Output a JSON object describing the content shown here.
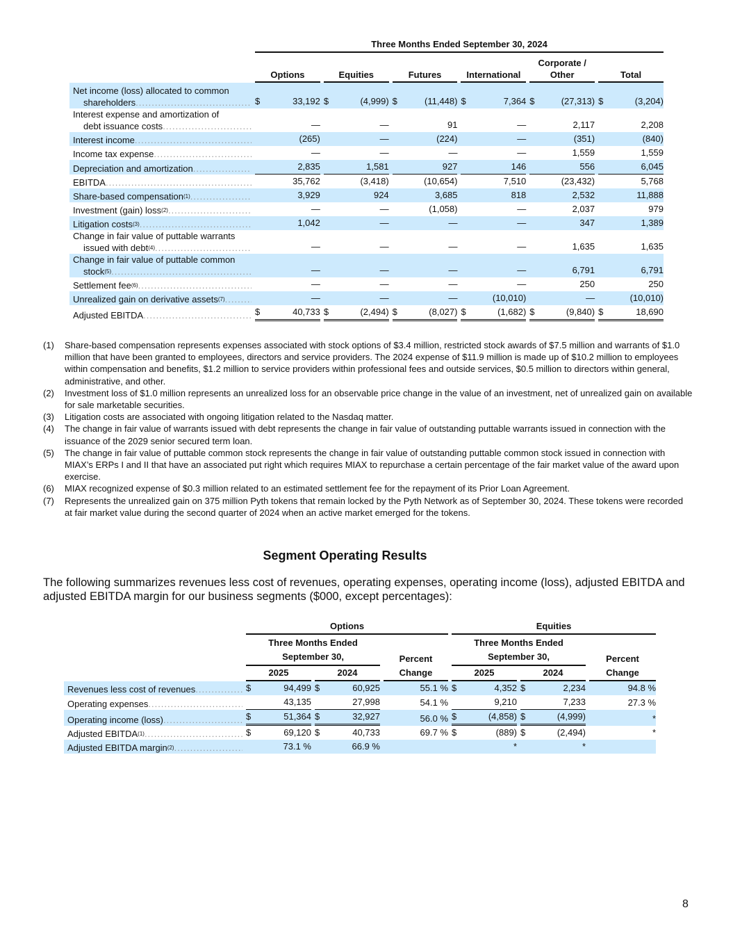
{
  "table1": {
    "period_header": "Three Months Ended September 30, 2024",
    "columns": [
      "Options",
      "Equities",
      "Futures",
      "International",
      "Corporate / Other",
      "Total"
    ],
    "rows": [
      {
        "label": "Net income (loss) allocated to common",
        "label2": "shareholders",
        "sup": "",
        "dollar": true,
        "shaded": true,
        "values": [
          "33,192",
          "(4,999)",
          "(11,448)",
          "7,364",
          "(27,313)",
          "(3,204)"
        ]
      },
      {
        "label": "Interest expense and amortization of",
        "label2": "debt issuance costs",
        "sup": "",
        "dollar": false,
        "shaded": false,
        "values": [
          "—",
          "—",
          "91",
          "—",
          "2,117",
          "2,208"
        ]
      },
      {
        "label": "Interest income",
        "sup": "",
        "dollar": false,
        "shaded": true,
        "values": [
          "(265)",
          "—",
          "(224)",
          "—",
          "(351)",
          "(840)"
        ]
      },
      {
        "label": "Income tax expense",
        "sup": "",
        "dollar": false,
        "shaded": false,
        "values": [
          "—",
          "—",
          "—",
          "—",
          "1,559",
          "1,559"
        ]
      },
      {
        "label": "Depreciation and amortization",
        "sup": "",
        "dollar": false,
        "shaded": true,
        "underline": "single",
        "values": [
          "2,835",
          "1,581",
          "927",
          "146",
          "556",
          "6,045"
        ]
      },
      {
        "label": "EBITDA",
        "sup": "",
        "dollar": false,
        "shaded": false,
        "values": [
          "35,762",
          "(3,418)",
          "(10,654)",
          "7,510",
          "(23,432)",
          "5,768"
        ]
      },
      {
        "label": "Share-based compensation",
        "sup": "(1)",
        "dollar": false,
        "shaded": true,
        "values": [
          "3,929",
          "924",
          "3,685",
          "818",
          "2,532",
          "11,888"
        ]
      },
      {
        "label": "Investment (gain) loss",
        "sup": "(2)",
        "dollar": false,
        "shaded": false,
        "values": [
          "—",
          "—",
          "(1,058)",
          "—",
          "2,037",
          "979"
        ]
      },
      {
        "label": "Litigation costs",
        "sup": "(3)",
        "dollar": false,
        "shaded": true,
        "values": [
          "1,042",
          "—",
          "—",
          "—",
          "347",
          "1,389"
        ]
      },
      {
        "label": "Change in fair value of puttable warrants",
        "label2": "issued with debt",
        "sup": "(4)",
        "dollar": false,
        "shaded": false,
        "values": [
          "—",
          "—",
          "—",
          "—",
          "1,635",
          "1,635"
        ]
      },
      {
        "label": "Change in fair value of puttable common",
        "label2": "stock",
        "sup": "(5)",
        "dollar": false,
        "shaded": true,
        "values": [
          "—",
          "—",
          "—",
          "—",
          "6,791",
          "6,791"
        ]
      },
      {
        "label": "Settlement fee",
        "sup": "(6)",
        "dollar": false,
        "shaded": false,
        "values": [
          "—",
          "—",
          "—",
          "—",
          "250",
          "250"
        ]
      },
      {
        "label": "Unrealized gain on derivative assets",
        "sup": "(7)",
        "dollar": false,
        "shaded": true,
        "values": [
          "—",
          "—",
          "—",
          "(10,010)",
          "—",
          "(10,010)"
        ]
      },
      {
        "label": "Adjusted EBITDA",
        "sup": "",
        "dollar": true,
        "shaded": false,
        "underline": "double",
        "values": [
          "40,733",
          "(2,494)",
          "(8,027)",
          "(1,682)",
          "(9,840)",
          "18,690"
        ]
      }
    ]
  },
  "footnotes": [
    {
      "num": "(1)",
      "text": "Share-based compensation represents expenses associated with stock options of $3.4 million, restricted stock awards of $7.5 million and warrants of $1.0 million that have been granted to employees, directors and service providers. The 2024 expense of $11.9 million is made up of $10.2 million to employees within compensation and benefits, $1.2 million to service providers within professional fees and outside services, $0.5 million to directors within general, administrative, and other."
    },
    {
      "num": "(2)",
      "text": "Investment loss of $1.0 million represents an unrealized loss for an observable price change in the value of an investment, net of unrealized gain on available for sale marketable securities."
    },
    {
      "num": "(3)",
      "text": "Litigation costs are associated with ongoing litigation related to the Nasdaq matter."
    },
    {
      "num": "(4)",
      "text": "The change in fair value of warrants issued with debt represents the change in fair value of outstanding puttable warrants issued in connection with the issuance of the 2029 senior secured term loan."
    },
    {
      "num": "(5)",
      "text": "The change in fair value of puttable common stock represents the change in fair value of outstanding puttable common stock issued in connection with MIAX’s ERPs I and II that have an associated put right which requires MIAX to repurchase a certain percentage of the fair market value of the award upon exercise."
    },
    {
      "num": "(6)",
      "text": "MIAX recognized expense of $0.3 million related to an estimated settlement fee for the repayment of its Prior Loan Agreement."
    },
    {
      "num": "(7)",
      "text": "Represents the unrealized gain on 375 million Pyth tokens that remain locked by the Pyth Network as of September 30, 2024.  These tokens were recorded at fair market value during the second quarter of 2024 when an active market emerged for the tokens."
    }
  ],
  "segment": {
    "title": "Segment Operating Results",
    "intro": "The following summarizes revenues less cost of revenues, operating expenses, operating income (loss), adjusted EBITDA and adjusted EBITDA margin for our business segments ($000, except percentages):",
    "groups": [
      "Options",
      "Equities"
    ],
    "period_line1": "Three Months Ended",
    "period_line2": "September 30,",
    "pct_line1": "Percent",
    "pct_line2": "Change",
    "years": [
      "2025",
      "2024"
    ],
    "rows": [
      {
        "label": "Revenues less cost of revenues",
        "sup": "",
        "shaded": true,
        "dollar": true,
        "values": [
          "94,499",
          "60,925",
          "55.1 %",
          "4,352",
          "2,234",
          "94.8 %"
        ]
      },
      {
        "label": "Operating expenses",
        "sup": "",
        "shaded": false,
        "dollar": false,
        "underline": "single",
        "values": [
          "43,135",
          "27,998",
          "54.1 %",
          "9,210",
          "7,233",
          "27.3 %"
        ]
      },
      {
        "label": "Operating income (loss)",
        "sup": "",
        "shaded": true,
        "dollar": true,
        "underline": "double",
        "values": [
          "51,364",
          "32,927",
          "56.0 %",
          "(4,858)",
          "(4,999)",
          "*"
        ]
      },
      {
        "label": "Adjusted EBITDA",
        "sup": "(1)",
        "shaded": false,
        "dollar": true,
        "values": [
          "69,120",
          "40,733",
          "69.7 %",
          "(889)",
          "(2,494)",
          "*"
        ]
      },
      {
        "label": "Adjusted EBITDA margin",
        "sup": "(2)",
        "shaded": true,
        "dollar": false,
        "values": [
          "73.1 %",
          "66.9 %",
          "",
          "*",
          "*",
          ""
        ]
      }
    ]
  },
  "page_number": "8"
}
